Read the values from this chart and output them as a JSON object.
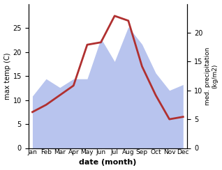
{
  "months": [
    "Jan",
    "Feb",
    "Mar",
    "Apr",
    "May",
    "Jun",
    "Jul",
    "Aug",
    "Sep",
    "Oct",
    "Nov",
    "Dec"
  ],
  "temperature": [
    7.5,
    9.0,
    11.0,
    13.0,
    21.5,
    22.0,
    27.5,
    26.5,
    17.0,
    11.0,
    6.0,
    6.5
  ],
  "precipitation": [
    9.0,
    12.0,
    10.5,
    12.0,
    12.0,
    19.0,
    15.0,
    21.0,
    18.0,
    13.0,
    10.0,
    11.0
  ],
  "temp_color": "#b03030",
  "precip_color": "#b8c4ee",
  "ylabel_left": "max temp (C)",
  "ylabel_right": "med. precipitation\n(kg/m2)",
  "xlabel": "date (month)",
  "ylim_left": [
    0,
    30
  ],
  "ylim_right": [
    0,
    25
  ],
  "yticks_left": [
    0,
    5,
    10,
    15,
    20,
    25
  ],
  "yticks_right": [
    0,
    5,
    10,
    15,
    20
  ],
  "background_color": "#ffffff"
}
